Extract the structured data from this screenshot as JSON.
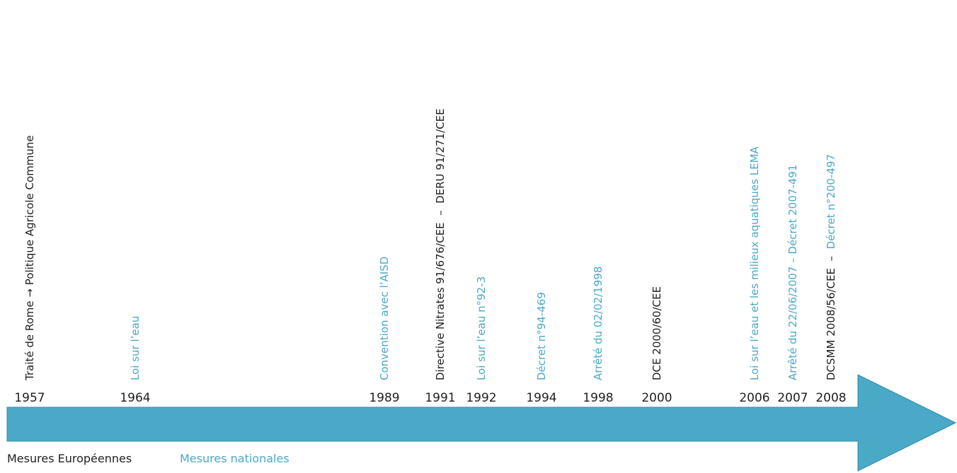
{
  "colors": {
    "arrow_fill": "#4aa9c7",
    "arrow_stroke": "#2f8aa8",
    "european": "#1f1f1f",
    "national": "#4aa9c7"
  },
  "legend": {
    "european_label": "Mesures Européennes",
    "national_label": "Mesures nationales"
  },
  "years": [
    "1957",
    "1964",
    "1989",
    "1991",
    "1992",
    "1994",
    "1998",
    "2000",
    "2006",
    "2007",
    "2008"
  ],
  "events": [
    {
      "year": "1957",
      "kind": "european",
      "text": "Traité de Rome → Politique Agricole Commune"
    },
    {
      "year": "1964",
      "kind": "national",
      "text": "Loi sur l’eau"
    },
    {
      "year": "1989",
      "kind": "national",
      "text": "Convention avec l’AISD"
    },
    {
      "year": "1991",
      "kind": "european",
      "text": "Directive Nitrates 91/676/CEE  –  DERU 91/271/CEE"
    },
    {
      "year": "1992",
      "kind": "national",
      "text": "Loi sur l’eau n°92-3"
    },
    {
      "year": "1994",
      "kind": "national",
      "text": "Décret n°94-469"
    },
    {
      "year": "1998",
      "kind": "national",
      "text": "Arrêté du 02/02/1998"
    },
    {
      "year": "2000",
      "kind": "european",
      "text": "DCE 2000/60/CEE"
    },
    {
      "year": "2006",
      "kind": "national",
      "text": "Loi sur l’eau et les milieux aquatiques LEMA"
    },
    {
      "year": "2007",
      "kind": "national",
      "text": "Arrêté du 22/06/2007 – Décret 2007-491"
    },
    {
      "year": "2008",
      "kind": "european",
      "text": "DCSMM 2008/56/CEE",
      "sep": "  –  "
    },
    {
      "year": "2008",
      "kind": "national",
      "text": "Décret n°200-497"
    }
  ]
}
